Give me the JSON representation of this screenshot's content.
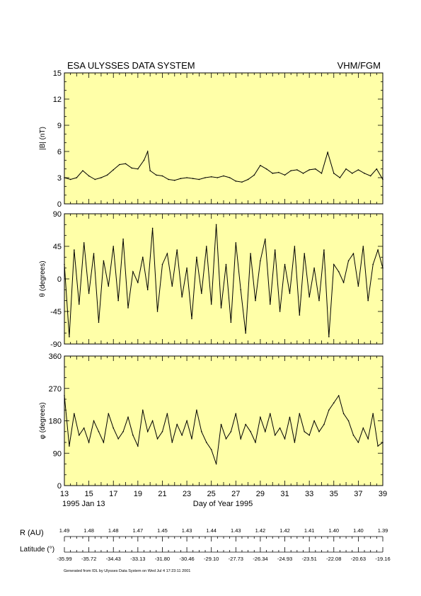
{
  "header": {
    "title": "ESA ULYSSES DATA SYSTEM",
    "instrument": "VHM/FGM"
  },
  "footer": {
    "start_date": "1995 Jan 13",
    "xlabel": "Day of Year 1995",
    "generated_note": "Generated from IDL by Ulysses Data System on Wed Jul  4 17:23:11 2001"
  },
  "orbit": {
    "r_label": "R (AU)",
    "lat_label": "Latitude (°)",
    "r_values": [
      "1.49",
      "1.48",
      "1.48",
      "1.47",
      "1.45",
      "1.43",
      "1.44",
      "1.43",
      "1.42",
      "1.42",
      "1.41",
      "1.40",
      "1.40",
      "1.39"
    ],
    "lat_values": [
      "-35.99",
      "-35.72",
      "-34.43",
      "-33.13",
      "-31.80",
      "-30.46",
      "-29.10",
      "-27.73",
      "-26.34",
      "-24.93",
      "-23.51",
      "-22.08",
      "-20.63",
      "-19.16"
    ]
  },
  "chart_data": [
    {
      "type": "line",
      "ylabel": "|B| (nT)",
      "xlim": [
        13,
        39
      ],
      "ylim": [
        0,
        15
      ],
      "yticks": [
        "0",
        "3",
        "6",
        "9",
        "12",
        "15"
      ],
      "xticks": [
        "13",
        "15",
        "17",
        "19",
        "21",
        "23",
        "25",
        "27",
        "29",
        "31",
        "33",
        "35",
        "37",
        "39"
      ],
      "background": "#ffffa8",
      "x": [
        13.0,
        13.5,
        14.0,
        14.5,
        15.0,
        15.5,
        16.0,
        16.5,
        17.0,
        17.5,
        18.0,
        18.5,
        19.0,
        19.5,
        19.8,
        20.0,
        20.5,
        21.0,
        21.5,
        22.0,
        22.5,
        23.0,
        23.5,
        24.0,
        24.5,
        25.0,
        25.5,
        26.0,
        26.5,
        27.0,
        27.5,
        28.0,
        28.5,
        29.0,
        29.5,
        30.0,
        30.5,
        31.0,
        31.5,
        32.0,
        32.5,
        33.0,
        33.5,
        34.0,
        34.5,
        35.0,
        35.5,
        36.0,
        36.5,
        37.0,
        37.5,
        38.0,
        38.5,
        39.0
      ],
      "y": [
        3.0,
        2.8,
        3.0,
        3.8,
        3.2,
        2.8,
        3.0,
        3.3,
        3.9,
        4.5,
        4.6,
        4.1,
        4.0,
        5.0,
        6.0,
        3.8,
        3.3,
        3.2,
        2.8,
        2.7,
        2.9,
        3.0,
        2.9,
        2.8,
        3.0,
        3.1,
        3.0,
        3.2,
        3.0,
        2.6,
        2.5,
        2.8,
        3.3,
        4.4,
        4.0,
        3.5,
        3.6,
        3.3,
        3.8,
        3.9,
        3.5,
        3.9,
        4.0,
        3.5,
        5.9,
        3.5,
        3.0,
        4.0,
        3.5,
        3.9,
        3.5,
        3.2,
        4.0,
        2.8
      ]
    },
    {
      "type": "line",
      "ylabel": "θ (degrees)",
      "xlim": [
        13,
        39
      ],
      "ylim": [
        -90,
        90
      ],
      "yticks": [
        "-90",
        "-45",
        "0",
        "45",
        "90"
      ],
      "xticks": [
        "13",
        "15",
        "17",
        "19",
        "21",
        "23",
        "25",
        "27",
        "29",
        "31",
        "33",
        "35",
        "37",
        "39"
      ],
      "background": "#ffffa8",
      "x": [
        13.0,
        13.4,
        13.8,
        14.2,
        14.6,
        15.0,
        15.4,
        15.8,
        16.2,
        16.6,
        17.0,
        17.4,
        17.8,
        18.2,
        18.6,
        19.0,
        19.4,
        19.8,
        20.2,
        20.6,
        21.0,
        21.4,
        21.8,
        22.2,
        22.6,
        23.0,
        23.4,
        23.8,
        24.2,
        24.6,
        25.0,
        25.4,
        25.8,
        26.2,
        26.6,
        27.0,
        27.4,
        27.8,
        28.2,
        28.6,
        29.0,
        29.4,
        29.8,
        30.2,
        30.6,
        31.0,
        31.4,
        31.8,
        32.2,
        32.6,
        33.0,
        33.4,
        33.8,
        34.2,
        34.6,
        35.0,
        35.4,
        35.8,
        36.2,
        36.6,
        37.0,
        37.4,
        37.8,
        38.2,
        38.6,
        39.0
      ],
      "y": [
        20,
        -80,
        40,
        -35,
        50,
        -20,
        35,
        -60,
        25,
        -10,
        45,
        -30,
        55,
        -40,
        10,
        -5,
        30,
        -15,
        70,
        -45,
        20,
        35,
        -10,
        40,
        -25,
        15,
        -55,
        30,
        -20,
        45,
        -35,
        75,
        -40,
        20,
        -60,
        50,
        -15,
        -75,
        35,
        -30,
        25,
        55,
        -35,
        40,
        -45,
        20,
        -20,
        45,
        -50,
        35,
        -25,
        15,
        -30,
        40,
        -80,
        20,
        10,
        -5,
        25,
        35,
        -10,
        45,
        -30,
        20,
        40,
        15
      ]
    },
    {
      "type": "line",
      "ylabel": "φ (degrees)",
      "xlim": [
        13,
        39
      ],
      "ylim": [
        0,
        360
      ],
      "yticks": [
        "0",
        "90",
        "180",
        "270",
        "360"
      ],
      "xticks": [
        "13",
        "15",
        "17",
        "19",
        "21",
        "23",
        "25",
        "27",
        "29",
        "31",
        "33",
        "35",
        "37",
        "39"
      ],
      "background": "#ffffa8",
      "x": [
        13.0,
        13.4,
        13.8,
        14.2,
        14.6,
        15.0,
        15.4,
        15.8,
        16.2,
        16.6,
        17.0,
        17.4,
        17.8,
        18.2,
        18.6,
        19.0,
        19.4,
        19.8,
        20.2,
        20.6,
        21.0,
        21.4,
        21.8,
        22.2,
        22.6,
        23.0,
        23.4,
        23.8,
        24.2,
        24.6,
        25.0,
        25.4,
        25.8,
        26.2,
        26.6,
        27.0,
        27.4,
        27.8,
        28.2,
        28.6,
        29.0,
        29.4,
        29.8,
        30.2,
        30.6,
        31.0,
        31.4,
        31.8,
        32.2,
        32.6,
        33.0,
        33.4,
        33.8,
        34.2,
        34.6,
        35.0,
        35.4,
        35.8,
        36.2,
        36.6,
        37.0,
        37.4,
        37.8,
        38.2,
        38.6,
        39.0
      ],
      "y": [
        250,
        110,
        200,
        140,
        160,
        120,
        180,
        150,
        120,
        200,
        160,
        130,
        150,
        190,
        140,
        110,
        210,
        150,
        180,
        130,
        150,
        200,
        120,
        170,
        140,
        180,
        130,
        210,
        150,
        120,
        100,
        60,
        170,
        130,
        150,
        200,
        130,
        170,
        150,
        120,
        190,
        150,
        200,
        140,
        160,
        130,
        190,
        120,
        200,
        150,
        140,
        180,
        150,
        170,
        210,
        230,
        250,
        200,
        180,
        140,
        120,
        160,
        130,
        200,
        110,
        120
      ]
    }
  ]
}
